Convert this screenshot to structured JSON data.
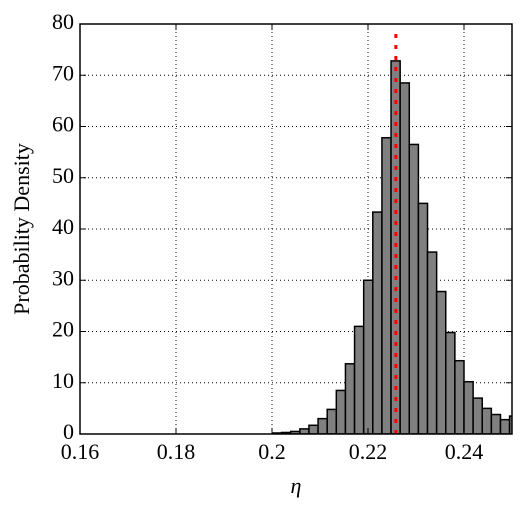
{
  "chart_data": {
    "type": "histogram",
    "xlabel": "η",
    "ylabel": "Probability Density",
    "bins": [
      0.2001,
      0.202,
      0.2039,
      0.2058,
      0.2077,
      0.2096,
      0.2115,
      0.2134,
      0.2153,
      0.2172,
      0.2191,
      0.221,
      0.2229,
      0.2248,
      0.2267,
      0.2286,
      0.2305,
      0.2324,
      0.2343,
      0.2362,
      0.2381,
      0.24,
      0.2419,
      0.2438,
      0.2457,
      0.2476,
      0.2495,
      0.2514
    ],
    "values": [
      0.2,
      0.3,
      0.5,
      1.0,
      1.7,
      3.0,
      4.8,
      8.5,
      13.7,
      21,
      30,
      43.3,
      57.8,
      72.8,
      68.5,
      56.5,
      45,
      35.5,
      27.8,
      19.8,
      14.3,
      10.2,
      7.0,
      5.0,
      3.8,
      2.8,
      3.5
    ],
    "color": "#808080",
    "xlim": [
      0.16,
      0.25
    ],
    "xticks": [
      0.16,
      0.18,
      0.2,
      0.22,
      0.24
    ],
    "ylim": [
      0,
      80
    ],
    "yticks": [
      0,
      10,
      20,
      30,
      40,
      50,
      60,
      70,
      80
    ],
    "grid": true,
    "vline": 0.2258,
    "vline_color": "#ff0000"
  }
}
